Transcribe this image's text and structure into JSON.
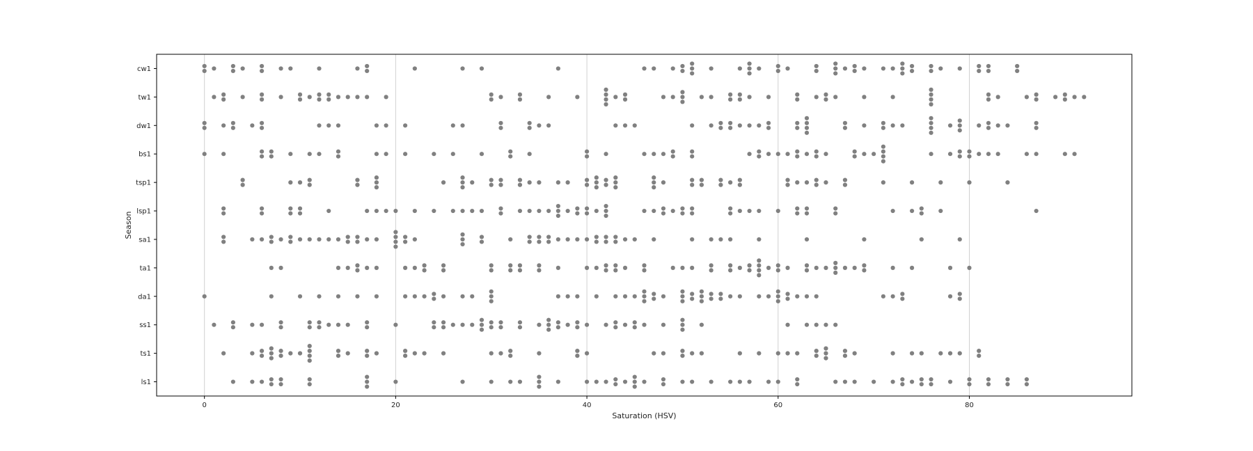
{
  "chart_data": {
    "type": "scatter",
    "subtype": "swarm",
    "xlabel": "Saturation (HSV)",
    "ylabel": "Season",
    "xlim": [
      -5,
      97
    ],
    "xticks": [
      0,
      20,
      40,
      60,
      80
    ],
    "xtick_labels": [
      "0",
      "20",
      "40",
      "60",
      "80"
    ],
    "categories": [
      "cw1",
      "tw1",
      "dw1",
      "bs1",
      "tsp1",
      "lsp1",
      "sa1",
      "ta1",
      "da1",
      "ss1",
      "ts1",
      "ls1"
    ],
    "grid": "vertical",
    "point_color": "#808080",
    "series": [
      {
        "category": "cw1",
        "values": [
          0,
          0,
          1,
          3,
          3,
          4,
          6,
          6,
          8,
          9,
          12,
          16,
          17,
          17,
          22,
          27,
          29,
          37,
          46,
          47,
          49,
          50,
          50,
          51,
          51,
          51,
          53,
          56,
          57,
          57,
          57,
          58,
          60,
          60,
          61,
          64,
          64,
          66,
          66,
          66,
          67,
          68,
          68,
          69,
          71,
          72,
          73,
          73,
          73,
          74,
          74,
          76,
          76,
          77,
          79,
          81,
          81,
          82,
          82,
          85,
          85
        ]
      },
      {
        "category": "tw1",
        "values": [
          1,
          2,
          2,
          4,
          6,
          6,
          8,
          10,
          10,
          11,
          12,
          12,
          13,
          13,
          14,
          15,
          16,
          17,
          19,
          30,
          30,
          31,
          33,
          33,
          36,
          39,
          42,
          42,
          42,
          42,
          43,
          44,
          44,
          48,
          49,
          50,
          50,
          50,
          52,
          53,
          55,
          55,
          56,
          56,
          57,
          59,
          62,
          62,
          64,
          65,
          65,
          66,
          69,
          72,
          76,
          76,
          76,
          76,
          82,
          82,
          83,
          86,
          87,
          87,
          89,
          90,
          90,
          91,
          92
        ]
      },
      {
        "category": "dw1",
        "values": [
          0,
          0,
          2,
          3,
          3,
          5,
          6,
          6,
          12,
          13,
          14,
          18,
          19,
          21,
          26,
          27,
          31,
          31,
          34,
          34,
          35,
          36,
          43,
          44,
          45,
          51,
          53,
          54,
          54,
          55,
          55,
          56,
          57,
          58,
          59,
          59,
          62,
          62,
          63,
          63,
          63,
          63,
          67,
          67,
          69,
          71,
          71,
          72,
          73,
          76,
          76,
          76,
          76,
          78,
          79,
          79,
          79,
          81,
          82,
          82,
          83,
          84,
          87,
          87
        ]
      },
      {
        "category": "bs1",
        "values": [
          0,
          2,
          6,
          6,
          7,
          7,
          9,
          11,
          12,
          14,
          14,
          18,
          19,
          21,
          24,
          26,
          29,
          32,
          32,
          34,
          40,
          40,
          42,
          46,
          47,
          48,
          49,
          49,
          51,
          51,
          57,
          58,
          58,
          59,
          60,
          61,
          62,
          62,
          63,
          64,
          64,
          65,
          68,
          68,
          69,
          70,
          71,
          71,
          71,
          71,
          76,
          78,
          79,
          79,
          80,
          80,
          81,
          82,
          83,
          86,
          87,
          90,
          91
        ]
      },
      {
        "category": "tsp1",
        "values": [
          4,
          4,
          9,
          10,
          11,
          11,
          16,
          16,
          18,
          18,
          18,
          25,
          27,
          27,
          27,
          28,
          30,
          30,
          31,
          31,
          33,
          33,
          34,
          35,
          37,
          38,
          40,
          40,
          41,
          41,
          41,
          42,
          42,
          43,
          43,
          43,
          47,
          47,
          47,
          48,
          51,
          51,
          52,
          52,
          54,
          54,
          55,
          56,
          56,
          61,
          61,
          62,
          63,
          64,
          64,
          65,
          67,
          67,
          71,
          74,
          77,
          80,
          84
        ]
      },
      {
        "category": "lsp1",
        "values": [
          2,
          2,
          6,
          6,
          9,
          9,
          10,
          10,
          13,
          17,
          18,
          19,
          20,
          22,
          24,
          26,
          27,
          28,
          29,
          31,
          31,
          33,
          34,
          35,
          36,
          37,
          37,
          37,
          38,
          39,
          39,
          40,
          40,
          41,
          42,
          42,
          42,
          46,
          47,
          48,
          48,
          49,
          50,
          50,
          51,
          51,
          55,
          55,
          56,
          57,
          58,
          60,
          62,
          62,
          63,
          63,
          66,
          66,
          72,
          74,
          75,
          75,
          77,
          87
        ]
      },
      {
        "category": "sa1",
        "values": [
          2,
          2,
          5,
          6,
          7,
          7,
          8,
          9,
          9,
          10,
          11,
          12,
          13,
          14,
          15,
          15,
          16,
          16,
          17,
          18,
          20,
          20,
          20,
          20,
          21,
          21,
          22,
          27,
          27,
          27,
          29,
          29,
          32,
          34,
          34,
          35,
          35,
          36,
          36,
          37,
          38,
          39,
          40,
          41,
          41,
          42,
          42,
          43,
          43,
          44,
          45,
          47,
          51,
          53,
          54,
          55,
          58,
          63,
          69,
          75,
          79
        ]
      },
      {
        "category": "ta1",
        "values": [
          7,
          8,
          14,
          15,
          16,
          16,
          17,
          18,
          21,
          22,
          23,
          23,
          25,
          25,
          30,
          30,
          32,
          32,
          33,
          33,
          35,
          35,
          37,
          40,
          41,
          42,
          42,
          43,
          43,
          44,
          46,
          46,
          49,
          50,
          51,
          53,
          53,
          55,
          55,
          56,
          57,
          57,
          58,
          58,
          58,
          58,
          59,
          60,
          60,
          61,
          63,
          63,
          64,
          65,
          66,
          66,
          66,
          67,
          68,
          69,
          69,
          72,
          74,
          78,
          80
        ]
      },
      {
        "category": "da1",
        "values": [
          0,
          7,
          10,
          12,
          14,
          16,
          18,
          21,
          22,
          23,
          24,
          24,
          25,
          27,
          28,
          30,
          30,
          30,
          37,
          38,
          39,
          41,
          43,
          44,
          45,
          46,
          46,
          46,
          47,
          47,
          48,
          50,
          50,
          50,
          51,
          51,
          52,
          52,
          52,
          53,
          53,
          54,
          54,
          55,
          56,
          58,
          59,
          60,
          60,
          60,
          61,
          61,
          62,
          63,
          64,
          71,
          72,
          73,
          73,
          78,
          79,
          79
        ]
      },
      {
        "category": "ss1",
        "values": [
          1,
          3,
          3,
          5,
          6,
          8,
          8,
          11,
          11,
          12,
          12,
          13,
          14,
          15,
          17,
          17,
          20,
          24,
          24,
          25,
          25,
          26,
          27,
          28,
          29,
          29,
          29,
          30,
          30,
          31,
          31,
          33,
          33,
          35,
          36,
          36,
          36,
          37,
          37,
          38,
          39,
          39,
          40,
          42,
          43,
          43,
          44,
          45,
          45,
          46,
          48,
          50,
          50,
          50,
          52,
          61,
          63,
          64,
          65,
          66
        ]
      },
      {
        "category": "ts1",
        "values": [
          2,
          5,
          6,
          6,
          7,
          7,
          7,
          8,
          8,
          9,
          10,
          11,
          11,
          11,
          11,
          14,
          14,
          15,
          17,
          17,
          18,
          21,
          21,
          22,
          23,
          25,
          30,
          31,
          32,
          32,
          35,
          39,
          39,
          40,
          47,
          48,
          50,
          50,
          51,
          52,
          56,
          58,
          60,
          61,
          62,
          64,
          64,
          65,
          65,
          65,
          67,
          67,
          68,
          72,
          74,
          75,
          77,
          78,
          79,
          81,
          81
        ]
      },
      {
        "category": "ls1",
        "values": [
          3,
          5,
          6,
          7,
          7,
          8,
          8,
          11,
          11,
          17,
          17,
          17,
          20,
          27,
          30,
          32,
          33,
          35,
          35,
          35,
          37,
          40,
          41,
          42,
          43,
          43,
          44,
          45,
          45,
          45,
          46,
          48,
          48,
          50,
          51,
          53,
          55,
          56,
          57,
          59,
          60,
          62,
          62,
          66,
          67,
          68,
          70,
          72,
          73,
          73,
          74,
          75,
          75,
          76,
          76,
          78,
          80,
          80,
          82,
          82,
          84,
          84,
          86,
          86
        ]
      }
    ]
  }
}
